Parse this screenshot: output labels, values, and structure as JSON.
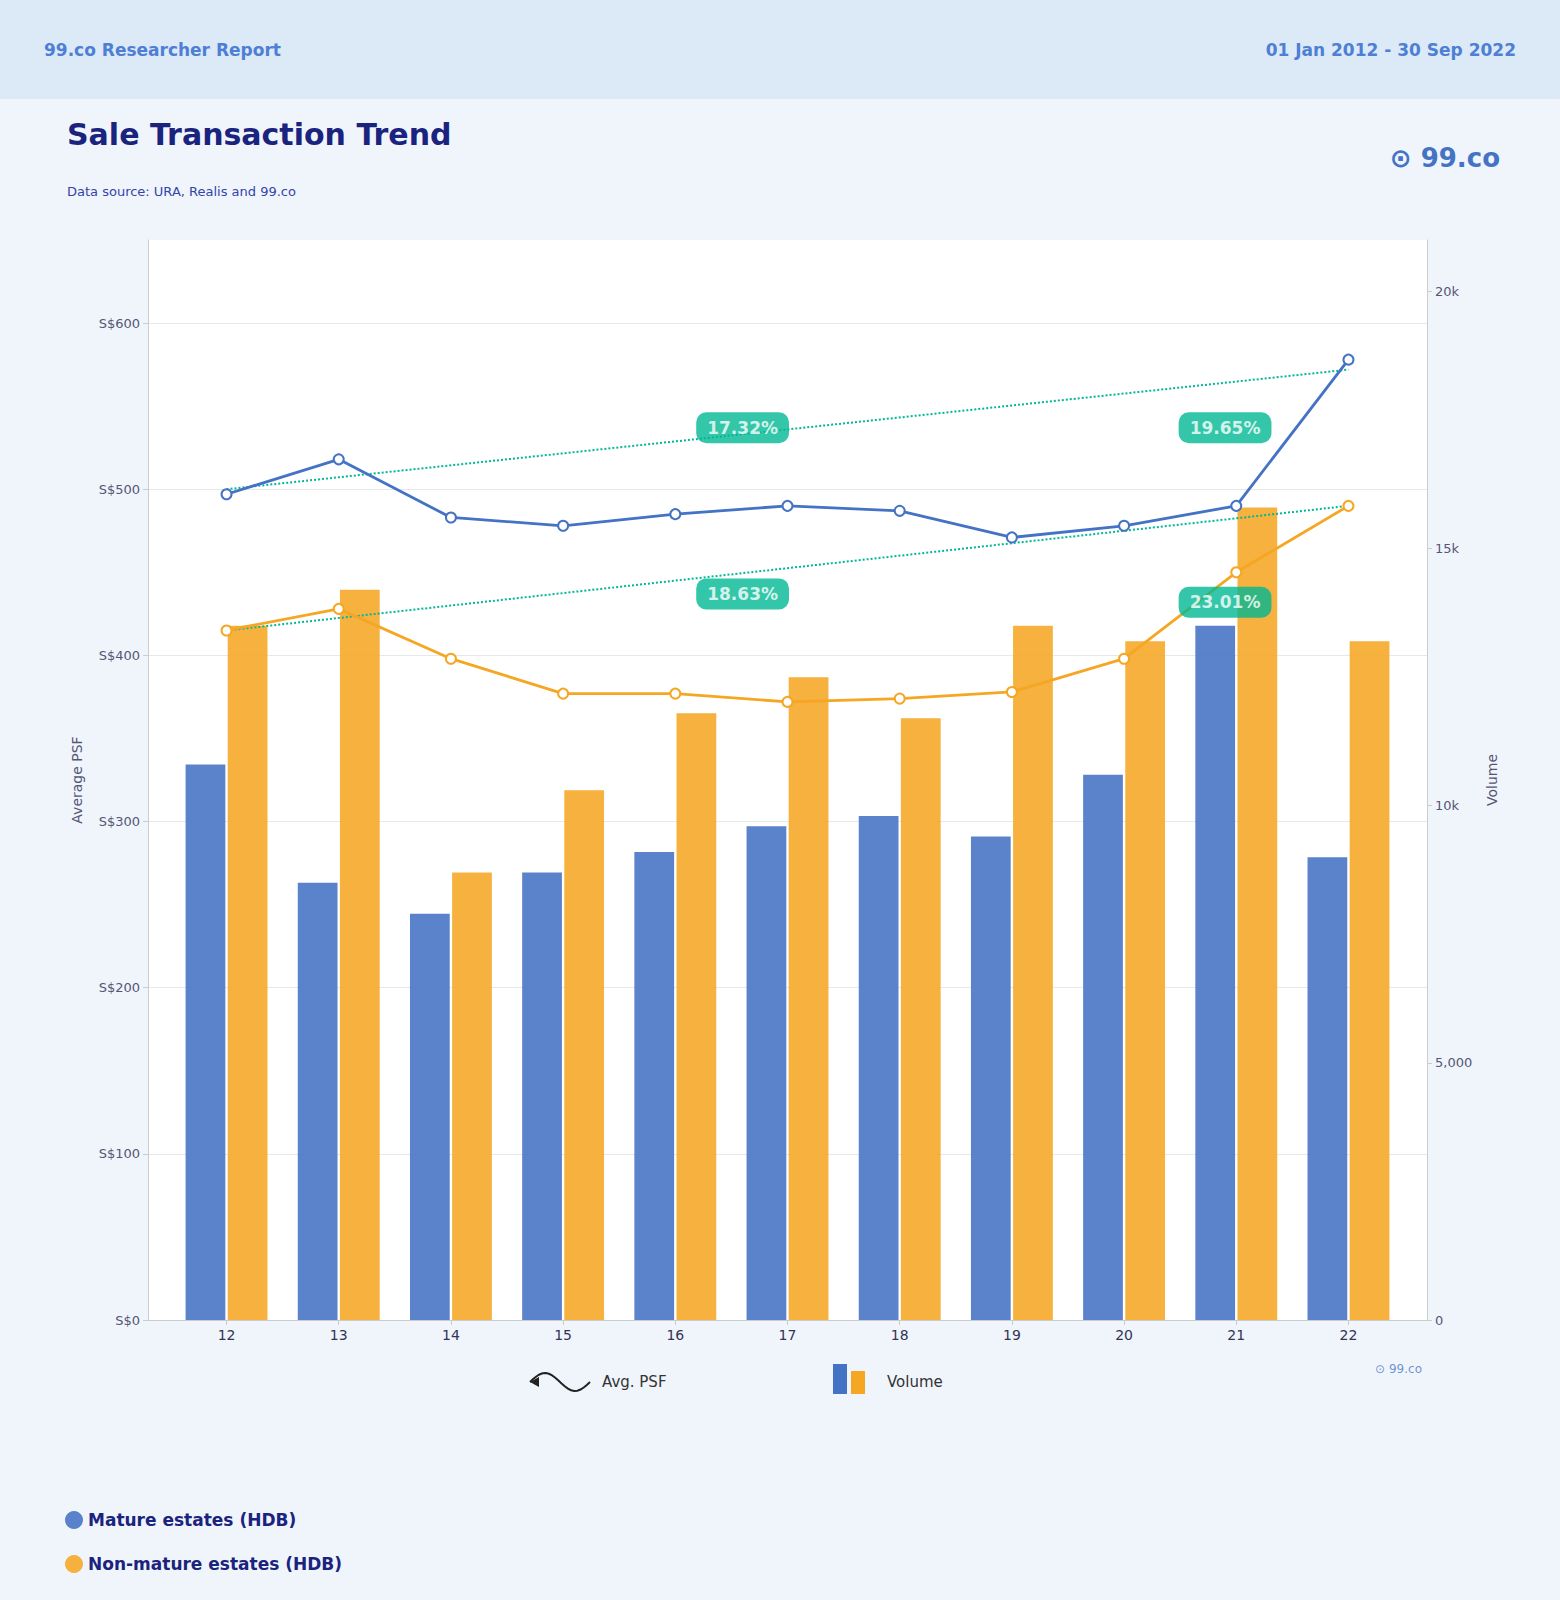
{
  "chart_data": {
    "type": "bar",
    "header": [
      "99.co Researcher Report",
      "01 Jan 2012 - 30 Sep 2022"
    ],
    "title": "Sale Transaction Trend",
    "subtitle": "Data source: URA, Realis and 99.co",
    "logo": "⊙ 99.co",
    "watermark": "⊙ 99.co",
    "x": [
      12,
      13,
      14,
      15,
      16,
      17,
      18,
      19,
      20,
      21,
      22
    ],
    "xlim": [
      11.3,
      22.7
    ],
    "xticks": [
      12,
      13,
      14,
      15,
      16,
      17,
      18,
      19,
      20,
      21,
      22
    ],
    "ylabel": "Average PSF",
    "ylim": [
      0,
      650
    ],
    "yticks": [
      {
        "value": 0,
        "label": "S$0"
      },
      {
        "value": 100,
        "label": "S$100"
      },
      {
        "value": 200,
        "label": "S$200"
      },
      {
        "value": 300,
        "label": "S$300"
      },
      {
        "value": 400,
        "label": "S$400"
      },
      {
        "value": 500,
        "label": "S$500"
      },
      {
        "value": 600,
        "label": "S$600"
      }
    ],
    "y2label": "Volume",
    "y2lim": [
      0,
      21000
    ],
    "y2ticks": [
      0,
      {
        "value": 5000,
        "label": "5,000"
      },
      {
        "value": 10000,
        "label": "10k"
      },
      {
        "value": 15000,
        "label": "15k"
      },
      {
        "value": 20000,
        "label": "20k"
      }
    ],
    "grid": true,
    "legend": "lower left",
    "series": [
      {
        "name": "Mature estates (HDB)",
        "type": "bar",
        "axis": "y2",
        "color": "#4472c4",
        "values": [
          10800,
          8500,
          7900,
          8700,
          9100,
          9600,
          9800,
          9400,
          10600,
          13500,
          9000
        ]
      },
      {
        "name": "Non-mature estates (HDB)",
        "type": "bar",
        "axis": "y2",
        "color": "#f5a623",
        "values": [
          13500,
          14200,
          8700,
          10300,
          11800,
          12500,
          11700,
          13500,
          13200,
          15800,
          13200
        ]
      },
      {
        "name": "Mature estates (HDB)",
        "type": "line",
        "color": "#4472c4",
        "marker": "circle",
        "values": [
          497,
          518,
          483,
          478,
          485,
          490,
          487,
          471,
          478,
          490,
          578
        ]
      },
      {
        "name": "Non-mature estates (HDB)",
        "type": "line",
        "color": "#f5a623",
        "marker": "circle",
        "values": [
          415,
          428,
          398,
          377,
          377,
          372,
          374,
          378,
          398,
          450,
          490
        ]
      },
      {
        "type": "line",
        "color": "#00b894",
        "line_style": "dotted",
        "x": [
          12,
          22
        ],
        "values": [
          500,
          572
        ]
      },
      {
        "type": "line",
        "color": "#00b894",
        "line_style": "dotted",
        "x": [
          12,
          22
        ],
        "values": [
          415,
          490
        ]
      }
    ],
    "annotations": [
      {
        "text": "17.32%",
        "x": 16.6,
        "y": 537,
        "color": "#00b894"
      },
      {
        "text": "18.63%",
        "x": 16.6,
        "y": 437,
        "color": "#00b894"
      },
      {
        "text": "19.65%",
        "x": 20.9,
        "y": 537,
        "color": "#00b894"
      },
      {
        "text": "23.01%",
        "x": 20.9,
        "y": 432,
        "color": "#00b894"
      }
    ],
    "legend_kinds": [
      {
        "label": "Avg. PSF",
        "type": "line"
      },
      {
        "label": "Volume",
        "type": "bar"
      }
    ]
  }
}
